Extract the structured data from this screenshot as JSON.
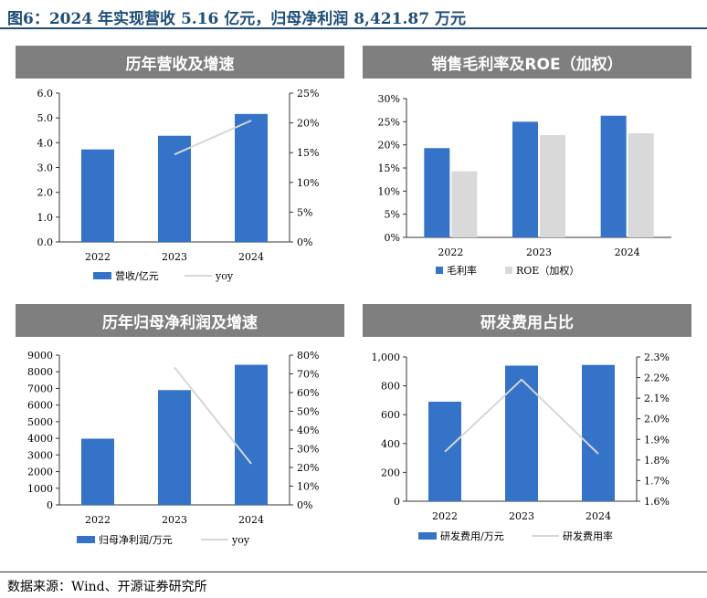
{
  "figure": {
    "title": "图6：2024 年实现营收 5.16 亿元，归母净利润 8,421.87 万元",
    "source": "数据来源：Wind、开源证券研究所"
  },
  "colors": {
    "bar_primary": "#3473c8",
    "bar_secondary": "#d9d9d9",
    "line": "#d6d6d6",
    "header": "#7f7f7f",
    "title": "#1f4e79"
  },
  "chart_data": [
    {
      "id": "revenue",
      "type": "bar",
      "title": "历年营收及增速",
      "categories": [
        "2022",
        "2023",
        "2024"
      ],
      "series": [
        {
          "name": "营收/亿元",
          "kind": "bar",
          "axis": "left",
          "values": [
            3.73,
            4.28,
            5.16
          ]
        },
        {
          "name": "yoy",
          "kind": "line",
          "axis": "right",
          "values": [
            null,
            14.7,
            20.4
          ]
        }
      ],
      "y_left": {
        "min": 0,
        "max": 6,
        "ticks": [
          "0.0",
          "1.0",
          "2.0",
          "3.0",
          "4.0",
          "5.0",
          "6.0"
        ]
      },
      "y_right": {
        "min": 0,
        "max": 25,
        "ticks": [
          "0%",
          "5%",
          "10%",
          "15%",
          "20%",
          "25%"
        ]
      },
      "legend": "bottom"
    },
    {
      "id": "margin",
      "type": "bar",
      "title": "销售毛利率及ROE（加权）",
      "categories": [
        "2022",
        "2023",
        "2024"
      ],
      "series": [
        {
          "name": "毛利率",
          "kind": "bar",
          "axis": "left",
          "values": [
            19.3,
            25.0,
            26.3
          ]
        },
        {
          "name": "ROE（加权）",
          "kind": "bar",
          "axis": "left",
          "values": [
            14.3,
            22.1,
            22.5
          ]
        }
      ],
      "y_left": {
        "min": 0,
        "max": 30,
        "ticks": [
          "0%",
          "5%",
          "10%",
          "15%",
          "20%",
          "25%",
          "30%"
        ]
      },
      "legend": "bottom"
    },
    {
      "id": "netprofit",
      "type": "bar",
      "title": "历年归母净利润及增速",
      "categories": [
        "2022",
        "2023",
        "2024"
      ],
      "series": [
        {
          "name": "归母净利润/万元",
          "kind": "bar",
          "axis": "left",
          "values": [
            3980,
            6900,
            8422
          ]
        },
        {
          "name": "yoy",
          "kind": "line",
          "axis": "right",
          "values": [
            null,
            73.5,
            22.0
          ]
        }
      ],
      "y_left": {
        "min": 0,
        "max": 9000,
        "ticks": [
          "0",
          "1000",
          "2000",
          "3000",
          "4000",
          "5000",
          "6000",
          "7000",
          "8000",
          "9000"
        ]
      },
      "y_right": {
        "min": 0,
        "max": 80,
        "ticks": [
          "0%",
          "10%",
          "20%",
          "30%",
          "40%",
          "50%",
          "60%",
          "70%",
          "80%"
        ]
      },
      "legend": "bottom"
    },
    {
      "id": "rnd",
      "type": "bar",
      "title": "研发费用占比",
      "categories": [
        "2022",
        "2023",
        "2024"
      ],
      "series": [
        {
          "name": "研发费用/万元",
          "kind": "bar",
          "axis": "left",
          "values": [
            690,
            940,
            945
          ]
        },
        {
          "name": "研发费用率",
          "kind": "line",
          "axis": "right",
          "values": [
            1.84,
            2.19,
            1.83
          ]
        }
      ],
      "y_left": {
        "min": 0,
        "max": 1000,
        "ticks": [
          "0",
          "200",
          "400",
          "600",
          "800",
          "1,000"
        ]
      },
      "y_right": {
        "min": 1.6,
        "max": 2.3,
        "ticks": [
          "1.6%",
          "1.7%",
          "1.8%",
          "1.9%",
          "2.0%",
          "2.1%",
          "2.2%",
          "2.3%"
        ]
      },
      "legend": "bottom"
    }
  ]
}
